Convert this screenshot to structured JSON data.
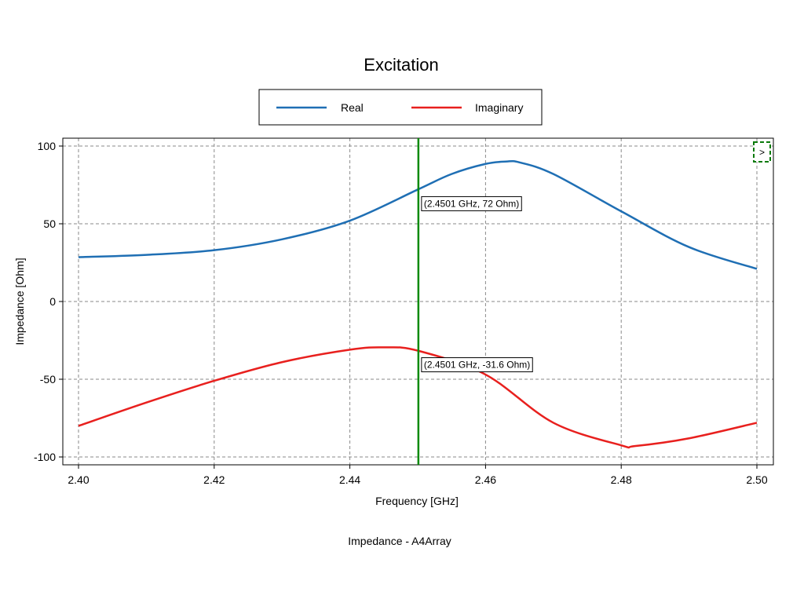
{
  "chart_data": {
    "type": "line",
    "title": "Excitation",
    "xlabel": "Frequency [GHz]",
    "ylabel": "Impedance [Ohm]",
    "caption": "Impedance - A4Array",
    "xlim": [
      2.4,
      2.5
    ],
    "ylim": [
      -105,
      100
    ],
    "x_ticks": [
      "2.40",
      "2.42",
      "2.44",
      "2.46",
      "2.48",
      "2.50"
    ],
    "y_ticks": [
      "100",
      "50",
      "0",
      "-50",
      "-100"
    ],
    "grid": true,
    "legend_position": "top",
    "series": [
      {
        "name": "Real",
        "color": "#1f6fb4",
        "x": [
          2.4,
          2.41,
          2.42,
          2.43,
          2.44,
          2.45,
          2.455,
          2.46,
          2.463,
          2.465,
          2.47,
          2.48,
          2.49,
          2.5
        ],
        "y": [
          28.5,
          30,
          33,
          40,
          52,
          72,
          82,
          88.5,
          90,
          89.5,
          82,
          58,
          35,
          21
        ]
      },
      {
        "name": "Imaginary",
        "color": "#e8201e",
        "x": [
          2.4,
          2.41,
          2.42,
          2.43,
          2.44,
          2.445,
          2.45,
          2.46,
          2.47,
          2.48,
          2.482,
          2.49,
          2.5
        ],
        "y": [
          -80,
          -65,
          -51,
          -39,
          -31,
          -29.5,
          -31.6,
          -47,
          -78,
          -92.5,
          -93,
          -88,
          -78
        ]
      }
    ],
    "marker": {
      "x": 2.4501,
      "color": "#0a8a0a",
      "labels": [
        "(2.4501 GHz, 72 Ohm)",
        "(2.4501 GHz, -31.6 Ohm)"
      ],
      "label_values": [
        72,
        -31.6
      ]
    },
    "corner_button": ">"
  }
}
